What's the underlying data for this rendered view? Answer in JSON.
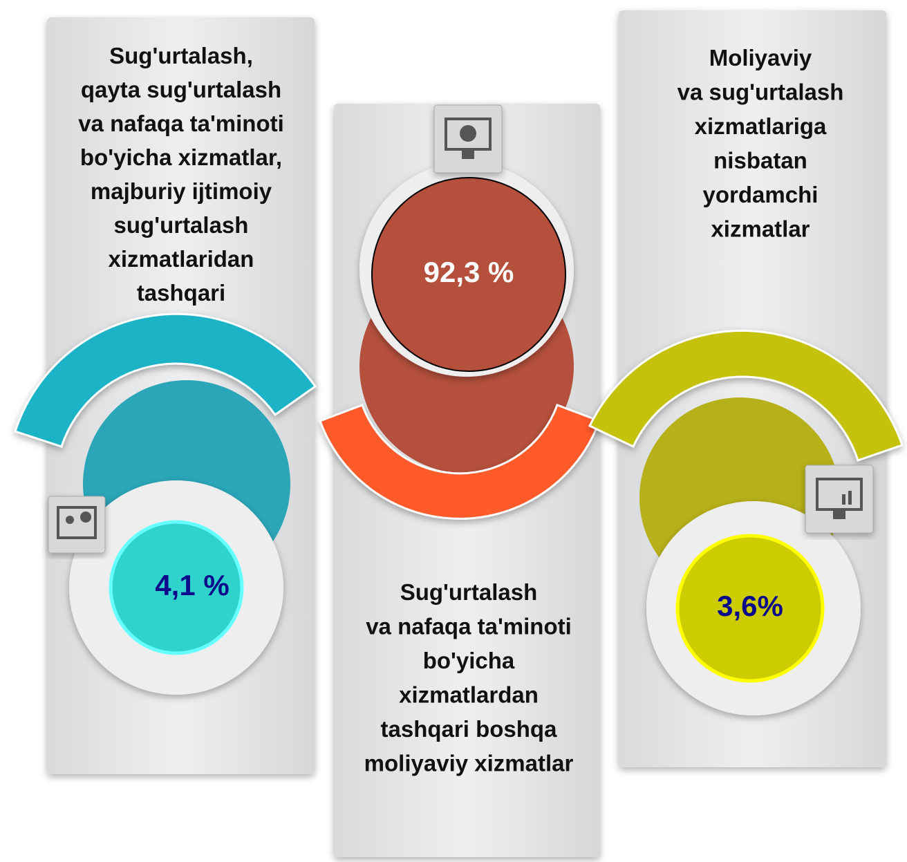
{
  "panels": [
    {
      "label": [
        "Sug'urtalash,",
        "qayta sug'urtalash",
        "va nafaqa ta'minoti",
        "bo'yicha xizmatlar,",
        "majburiy ijtimoiy",
        "sug'urtalash",
        "xizmatlaridan",
        "tashqari"
      ],
      "value": "4,1 %"
    },
    {
      "label": [
        "Sug'urtalash",
        "va nafaqa ta'minoti",
        "bo'yicha",
        "xizmatlardan",
        "tashqari boshqa",
        "moliyaviy xizmatlar"
      ],
      "value": "92,3 %"
    },
    {
      "label": [
        "Moliyaviy",
        "va sug'urtalash",
        "xizmatlariga",
        "nisbatan",
        "yordamchi",
        "xizmatlar"
      ],
      "value": "3,6%"
    }
  ]
}
